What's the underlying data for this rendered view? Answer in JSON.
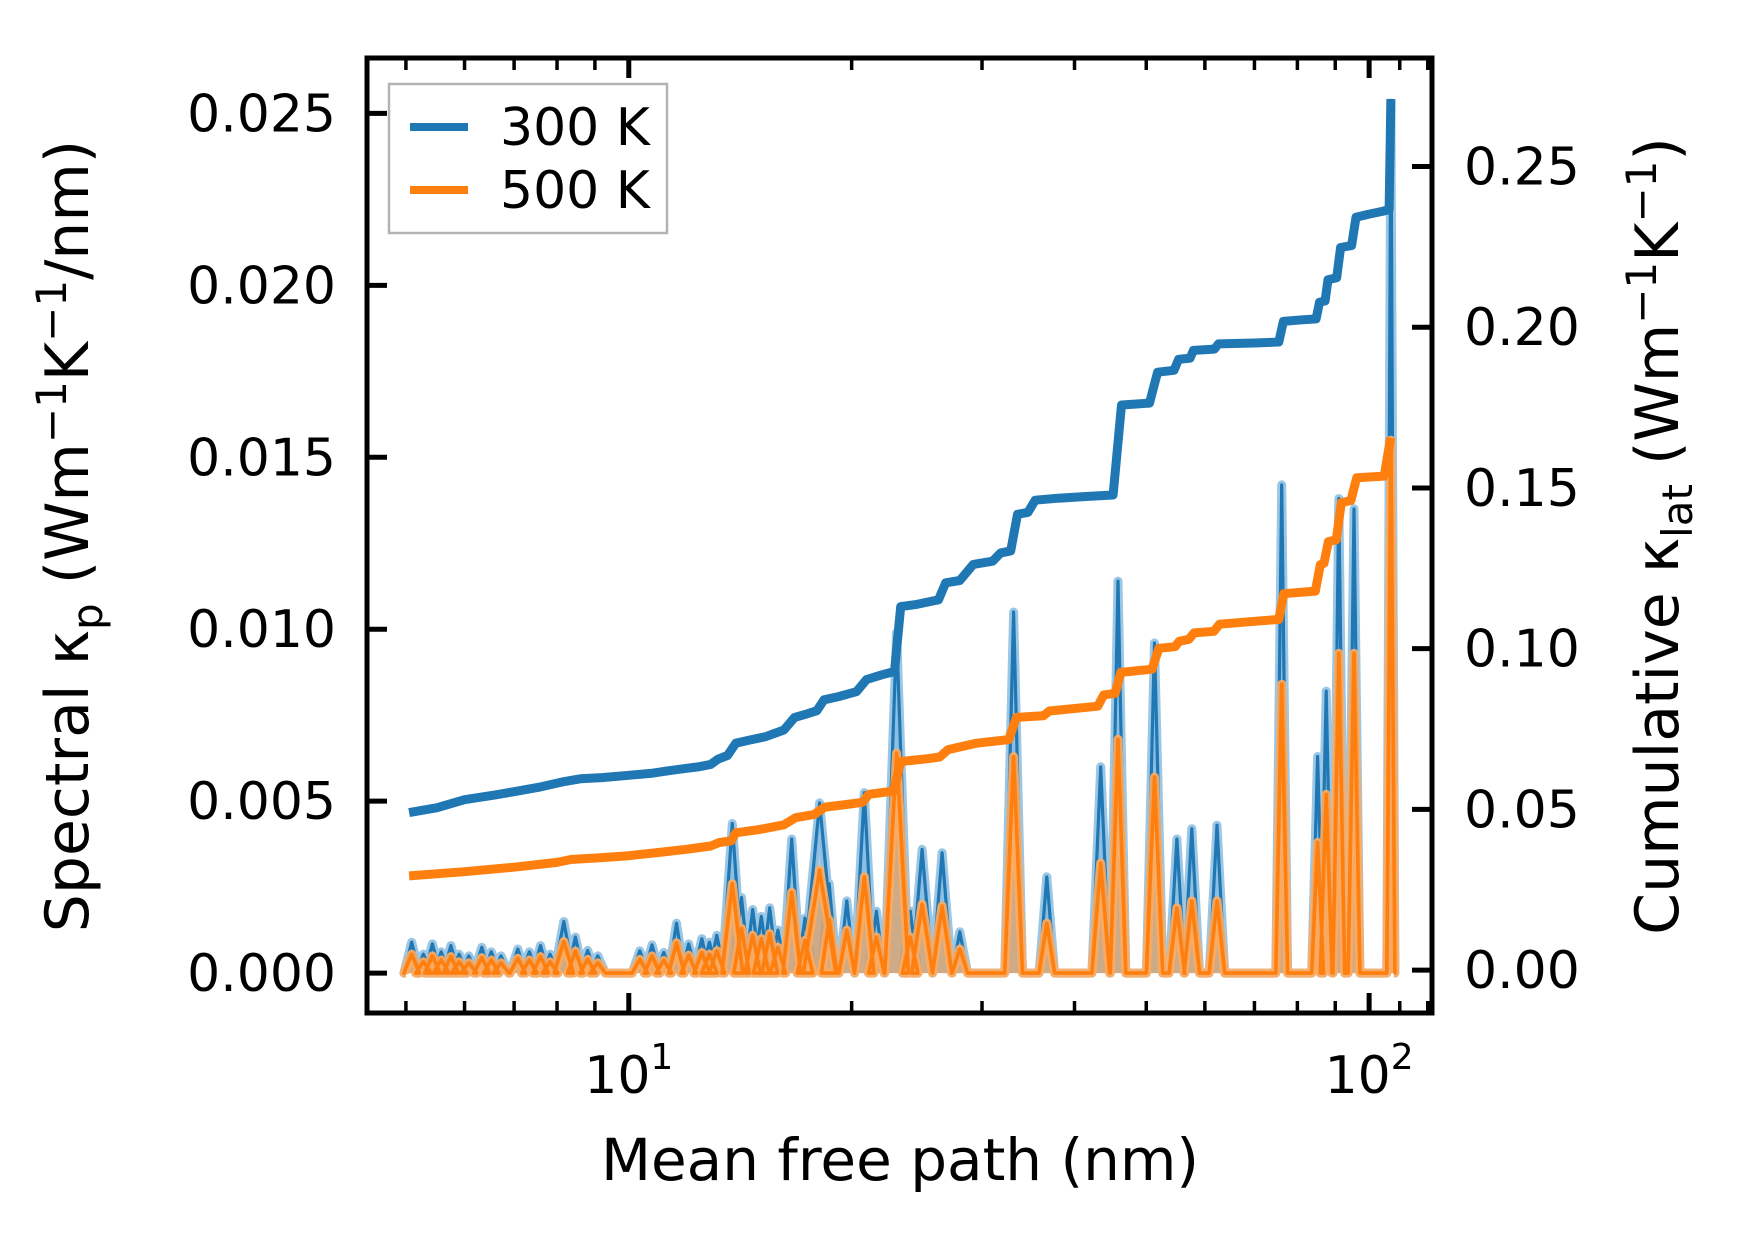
{
  "figure": {
    "kind": "matplotlib-style dual-axis spectral thermal conductivity plot",
    "background": "#ffffff"
  },
  "chart_data": {
    "type": "area",
    "title": "",
    "xlabel": "Mean free path (nm)",
    "x_scale": "log",
    "xlim": [
      4.43,
      121.6
    ],
    "ylim_left": [
      -0.00116,
      0.02661
    ],
    "ylim_right": [
      -0.01335,
      0.28376
    ],
    "grid": "off",
    "ylabel_left_parts": [
      {
        "t": "Spectral κ"
      },
      {
        "t": "p",
        "pos": "sub"
      },
      {
        "t": " (Wm"
      },
      {
        "t": "−1",
        "pos": "sup"
      },
      {
        "t": "K"
      },
      {
        "t": "−1",
        "pos": "sup"
      },
      {
        "t": "/nm)"
      }
    ],
    "ylabel_right_parts": [
      {
        "t": "Cumulative κ"
      },
      {
        "t": "lat",
        "pos": "sub"
      },
      {
        "t": " (Wm"
      },
      {
        "t": "−1",
        "pos": "sup"
      },
      {
        "t": "K"
      },
      {
        "t": "−1",
        "pos": "sup"
      },
      {
        "t": ")"
      }
    ],
    "x_major_ticks": [
      {
        "value": 10,
        "base": "10",
        "exp": "1"
      },
      {
        "value": 100,
        "base": "10",
        "exp": "2"
      }
    ],
    "x_minor_ticks": [
      5,
      6,
      7,
      8,
      9,
      20,
      30,
      40,
      50,
      60,
      70,
      80,
      90,
      110,
      120
    ],
    "y_left_ticks": {
      "values": [
        0.0,
        0.005,
        0.01,
        0.015,
        0.02,
        0.025
      ],
      "labels": [
        "0.000",
        "0.005",
        "0.010",
        "0.015",
        "0.020",
        "0.025"
      ]
    },
    "y_right_ticks": {
      "values": [
        0.0,
        0.05,
        0.1,
        0.15,
        0.2,
        0.25
      ],
      "labels": [
        "0.00",
        "0.05",
        "0.10",
        "0.15",
        "0.20",
        "0.25"
      ]
    },
    "legend": {
      "position": "upper left",
      "entries": [
        {
          "label": "300 K",
          "color": "#1f77b4"
        },
        {
          "label": "500 K",
          "color": "#ff7f0e"
        }
      ]
    },
    "colors": {
      "line_300K": "#1f77b4",
      "line_500K": "#ff7f0e",
      "halo_300K": "#8abde0",
      "halo_500K": "#ffab5e",
      "legend_border": "#b3b3b3",
      "axis": "#000000"
    },
    "spike_value_scale": 0.001,
    "spectral_spikes_milli": [
      [
        5.09,
        0.9,
        0.55
      ],
      [
        5.28,
        0.55,
        0.33
      ],
      [
        5.43,
        0.85,
        0.5
      ],
      [
        5.58,
        0.62,
        0.38
      ],
      [
        5.75,
        0.8,
        0.48
      ],
      [
        5.9,
        0.55,
        0.33
      ],
      [
        6.08,
        0.5,
        0.3
      ],
      [
        6.33,
        0.75,
        0.45
      ],
      [
        6.52,
        0.62,
        0.38
      ],
      [
        6.72,
        0.5,
        0.3
      ],
      [
        7.08,
        0.7,
        0.43
      ],
      [
        7.34,
        0.62,
        0.38
      ],
      [
        7.6,
        0.8,
        0.48
      ],
      [
        7.83,
        0.55,
        0.33
      ],
      [
        8.17,
        1.5,
        0.92,
        13
      ],
      [
        8.47,
        1.05,
        0.64
      ],
      [
        8.8,
        0.66,
        0.4
      ],
      [
        9.08,
        0.5,
        0.3
      ],
      [
        10.35,
        0.65,
        0.4
      ],
      [
        10.75,
        0.82,
        0.5
      ],
      [
        11.15,
        0.6,
        0.37
      ],
      [
        11.6,
        1.45,
        0.88
      ],
      [
        12.05,
        0.85,
        0.52
      ],
      [
        12.55,
        1.0,
        0.6
      ],
      [
        12.85,
        0.9,
        0.55
      ],
      [
        13.15,
        1.1,
        0.65
      ],
      [
        13.8,
        4.35,
        2.6,
        14
      ],
      [
        14.2,
        2.2,
        1.3
      ],
      [
        14.7,
        1.85,
        1.1
      ],
      [
        15.1,
        1.65,
        1.0
      ],
      [
        15.5,
        1.9,
        1.15
      ],
      [
        15.9,
        1.25,
        0.75
      ],
      [
        16.6,
        3.9,
        2.35,
        12
      ],
      [
        17.3,
        1.6,
        0.95
      ],
      [
        18.1,
        4.95,
        3.0,
        22
      ],
      [
        18.65,
        2.6,
        1.55
      ],
      [
        19.7,
        2.1,
        1.25
      ],
      [
        20.8,
        5.25,
        2.8,
        13
      ],
      [
        21.6,
        1.8,
        1.05
      ],
      [
        23.0,
        9.9,
        6.4,
        16
      ],
      [
        24.0,
        1.8,
        1.05
      ],
      [
        24.9,
        3.6,
        2.0,
        14
      ],
      [
        26.5,
        3.5,
        1.95,
        13
      ],
      [
        28.0,
        1.2,
        0.7
      ],
      [
        33.1,
        10.5,
        6.3,
        12
      ],
      [
        36.7,
        2.8,
        1.45
      ],
      [
        43.4,
        6.0,
        3.2,
        12
      ],
      [
        45.8,
        11.4,
        6.8
      ],
      [
        51.3,
        9.6,
        5.7,
        11
      ],
      [
        55.0,
        3.9,
        1.9
      ],
      [
        57.6,
        4.2,
        2.1
      ],
      [
        62.3,
        4.3,
        2.1
      ],
      [
        76.2,
        14.2,
        8.4,
        8
      ],
      [
        85.2,
        6.3,
        3.8,
        8
      ],
      [
        87.5,
        8.2,
        5.2,
        8
      ],
      [
        91.0,
        13.8,
        9.3,
        8
      ],
      [
        95.4,
        13.5,
        9.3,
        8
      ],
      [
        107.0,
        25.3,
        15.5,
        5.5
      ]
    ],
    "cumulative_300K": [
      [
        5.05,
        0.049
      ],
      [
        5.5,
        0.0505
      ],
      [
        6.0,
        0.053
      ],
      [
        6.6,
        0.0545
      ],
      [
        7.0,
        0.0555
      ],
      [
        7.6,
        0.057
      ],
      [
        8.2,
        0.0587
      ],
      [
        8.6,
        0.0595
      ],
      [
        9.2,
        0.0599
      ],
      [
        10.0,
        0.0606
      ],
      [
        10.7,
        0.0612
      ],
      [
        11.3,
        0.062
      ],
      [
        11.9,
        0.0627
      ],
      [
        12.4,
        0.0632
      ],
      [
        12.9,
        0.064
      ],
      [
        13.2,
        0.0656
      ],
      [
        13.6,
        0.0668
      ],
      [
        13.95,
        0.0706
      ],
      [
        14.6,
        0.0716
      ],
      [
        15.3,
        0.0726
      ],
      [
        16.2,
        0.0747
      ],
      [
        16.75,
        0.0786
      ],
      [
        17.4,
        0.0797
      ],
      [
        17.95,
        0.0807
      ],
      [
        18.35,
        0.0841
      ],
      [
        19.2,
        0.0851
      ],
      [
        20.3,
        0.0866
      ],
      [
        20.95,
        0.0904
      ],
      [
        22.0,
        0.0919
      ],
      [
        22.85,
        0.0929
      ],
      [
        23.3,
        0.1131
      ],
      [
        24.4,
        0.1137
      ],
      [
        25.6,
        0.1147
      ],
      [
        26.2,
        0.1152
      ],
      [
        26.8,
        0.1205
      ],
      [
        28.0,
        0.1212
      ],
      [
        29.2,
        0.1262
      ],
      [
        31.0,
        0.1272
      ],
      [
        31.8,
        0.1298
      ],
      [
        32.8,
        0.1304
      ],
      [
        33.5,
        0.1418
      ],
      [
        34.6,
        0.1424
      ],
      [
        35.4,
        0.1462
      ],
      [
        38.0,
        0.1468
      ],
      [
        42.0,
        0.1474
      ],
      [
        45.1,
        0.1478
      ],
      [
        46.3,
        0.1758
      ],
      [
        50.5,
        0.1764
      ],
      [
        51.8,
        0.186
      ],
      [
        54.5,
        0.1866
      ],
      [
        55.3,
        0.19
      ],
      [
        57.3,
        0.1904
      ],
      [
        57.9,
        0.1928
      ],
      [
        61.8,
        0.1932
      ],
      [
        62.6,
        0.1948
      ],
      [
        70.0,
        0.1951
      ],
      [
        75.5,
        0.1954
      ],
      [
        76.6,
        0.2018
      ],
      [
        80.0,
        0.2022
      ],
      [
        84.8,
        0.2026
      ],
      [
        85.7,
        0.2078
      ],
      [
        87.2,
        0.2082
      ],
      [
        88.0,
        0.2148
      ],
      [
        90.4,
        0.2154
      ],
      [
        91.5,
        0.2248
      ],
      [
        94.7,
        0.2254
      ],
      [
        96.0,
        0.2342
      ],
      [
        100.0,
        0.2352
      ],
      [
        104.0,
        0.236
      ],
      [
        106.4,
        0.2366
      ],
      [
        107.0,
        0.271
      ]
    ],
    "cumulative_500K": [
      [
        5.05,
        0.0293
      ],
      [
        6.0,
        0.0306
      ],
      [
        7.0,
        0.032
      ],
      [
        8.0,
        0.0335
      ],
      [
        8.35,
        0.0344
      ],
      [
        9.2,
        0.035
      ],
      [
        10.0,
        0.0356
      ],
      [
        11.0,
        0.0366
      ],
      [
        12.0,
        0.0376
      ],
      [
        12.9,
        0.0386
      ],
      [
        13.25,
        0.0397
      ],
      [
        13.75,
        0.0402
      ],
      [
        13.95,
        0.0427
      ],
      [
        15.0,
        0.0437
      ],
      [
        16.2,
        0.0452
      ],
      [
        16.8,
        0.0474
      ],
      [
        17.8,
        0.0484
      ],
      [
        18.4,
        0.0507
      ],
      [
        19.5,
        0.0514
      ],
      [
        20.7,
        0.0522
      ],
      [
        21.1,
        0.0547
      ],
      [
        22.8,
        0.0557
      ],
      [
        23.3,
        0.0649
      ],
      [
        25.2,
        0.0657
      ],
      [
        26.3,
        0.0663
      ],
      [
        27.0,
        0.0686
      ],
      [
        29.5,
        0.0706
      ],
      [
        32.6,
        0.0717
      ],
      [
        33.4,
        0.0786
      ],
      [
        36.3,
        0.0791
      ],
      [
        37.0,
        0.0806
      ],
      [
        43.0,
        0.0821
      ],
      [
        43.8,
        0.0856
      ],
      [
        45.4,
        0.0861
      ],
      [
        46.2,
        0.0926
      ],
      [
        50.9,
        0.0936
      ],
      [
        52.0,
        0.1001
      ],
      [
        54.7,
        0.1006
      ],
      [
        55.4,
        0.1023
      ],
      [
        57.1,
        0.1029
      ],
      [
        58.0,
        0.1049
      ],
      [
        61.7,
        0.1054
      ],
      [
        62.8,
        0.1076
      ],
      [
        75.5,
        0.1091
      ],
      [
        76.7,
        0.1171
      ],
      [
        84.6,
        0.1179
      ],
      [
        85.9,
        0.1261
      ],
      [
        86.9,
        0.1266
      ],
      [
        88.1,
        0.1333
      ],
      [
        90.3,
        0.1339
      ],
      [
        91.7,
        0.1454
      ],
      [
        94.5,
        0.1461
      ],
      [
        96.2,
        0.1532
      ],
      [
        104.8,
        0.1537
      ],
      [
        106.9,
        0.1656
      ]
    ]
  }
}
